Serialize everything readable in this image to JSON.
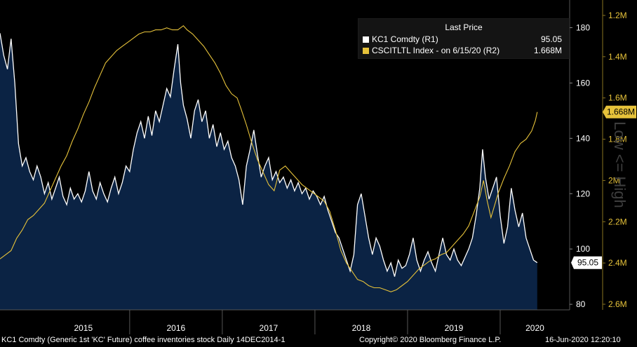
{
  "chart_data": {
    "type": "line",
    "legend": {
      "title": "Last Price",
      "placement": "top-right"
    },
    "x_ticks": [
      "2015",
      "2016",
      "2017",
      "2018",
      "2019",
      "2020"
    ],
    "y_left": {
      "ticks": [
        80,
        100,
        120,
        140,
        160,
        180
      ],
      "range": [
        78,
        190
      ]
    },
    "y_right": {
      "ticks": [
        "1.2M",
        "1.4M",
        "1.6M",
        "1.8M",
        "2M",
        "2.2M",
        "2.4M",
        "2.6M"
      ],
      "range_m": [
        2.65,
        1.15
      ],
      "inverted": true,
      "label": "Low <= High"
    },
    "series": [
      {
        "name": "KC1 Comdty  (R1)",
        "legend_value": "95.05",
        "last_label": "95.05",
        "color": "#ffffff",
        "fill": "#0b2344",
        "axis": "left",
        "points": [
          [
            2014.6,
            178
          ],
          [
            2014.64,
            170
          ],
          [
            2014.68,
            165
          ],
          [
            2014.72,
            176
          ],
          [
            2014.76,
            160
          ],
          [
            2014.8,
            138
          ],
          [
            2014.84,
            130
          ],
          [
            2014.88,
            133
          ],
          [
            2014.92,
            128
          ],
          [
            2014.96,
            125
          ],
          [
            2015.0,
            130
          ],
          [
            2015.04,
            126
          ],
          [
            2015.08,
            120
          ],
          [
            2015.12,
            124
          ],
          [
            2015.16,
            118
          ],
          [
            2015.2,
            122
          ],
          [
            2015.24,
            126
          ],
          [
            2015.28,
            119
          ],
          [
            2015.32,
            116
          ],
          [
            2015.36,
            122
          ],
          [
            2015.4,
            118
          ],
          [
            2015.44,
            120
          ],
          [
            2015.48,
            117
          ],
          [
            2015.52,
            121
          ],
          [
            2015.56,
            128
          ],
          [
            2015.6,
            121
          ],
          [
            2015.64,
            118
          ],
          [
            2015.68,
            124
          ],
          [
            2015.72,
            120
          ],
          [
            2015.76,
            117
          ],
          [
            2015.8,
            122
          ],
          [
            2015.84,
            126
          ],
          [
            2015.88,
            120
          ],
          [
            2015.92,
            124
          ],
          [
            2015.96,
            130
          ],
          [
            2016.0,
            128
          ],
          [
            2016.04,
            136
          ],
          [
            2016.08,
            142
          ],
          [
            2016.12,
            146
          ],
          [
            2016.16,
            140
          ],
          [
            2016.2,
            148
          ],
          [
            2016.24,
            141
          ],
          [
            2016.28,
            150
          ],
          [
            2016.32,
            146
          ],
          [
            2016.36,
            152
          ],
          [
            2016.4,
            158
          ],
          [
            2016.44,
            155
          ],
          [
            2016.48,
            165
          ],
          [
            2016.52,
            174
          ],
          [
            2016.55,
            160
          ],
          [
            2016.58,
            152
          ],
          [
            2016.62,
            147
          ],
          [
            2016.66,
            140
          ],
          [
            2016.7,
            150
          ],
          [
            2016.74,
            154
          ],
          [
            2016.78,
            146
          ],
          [
            2016.82,
            150
          ],
          [
            2016.86,
            140
          ],
          [
            2016.9,
            145
          ],
          [
            2016.94,
            137
          ],
          [
            2016.98,
            142
          ],
          [
            2017.02,
            136
          ],
          [
            2017.06,
            139
          ],
          [
            2017.1,
            133
          ],
          [
            2017.14,
            130
          ],
          [
            2017.18,
            125
          ],
          [
            2017.22,
            116
          ],
          [
            2017.26,
            130
          ],
          [
            2017.3,
            136
          ],
          [
            2017.34,
            143
          ],
          [
            2017.38,
            134
          ],
          [
            2017.42,
            126
          ],
          [
            2017.46,
            130
          ],
          [
            2017.5,
            133
          ],
          [
            2017.54,
            125
          ],
          [
            2017.58,
            128
          ],
          [
            2017.62,
            124
          ],
          [
            2017.66,
            126
          ],
          [
            2017.7,
            122
          ],
          [
            2017.74,
            125
          ],
          [
            2017.78,
            121
          ],
          [
            2017.82,
            124
          ],
          [
            2017.86,
            120
          ],
          [
            2017.9,
            122
          ],
          [
            2017.94,
            118
          ],
          [
            2017.98,
            121
          ],
          [
            2018.02,
            119
          ],
          [
            2018.06,
            116
          ],
          [
            2018.1,
            119
          ],
          [
            2018.14,
            114
          ],
          [
            2018.18,
            110
          ],
          [
            2018.22,
            106
          ],
          [
            2018.26,
            104
          ],
          [
            2018.3,
            100
          ],
          [
            2018.34,
            96
          ],
          [
            2018.38,
            92
          ],
          [
            2018.42,
            98
          ],
          [
            2018.46,
            116
          ],
          [
            2018.5,
            120
          ],
          [
            2018.54,
            112
          ],
          [
            2018.58,
            104
          ],
          [
            2018.62,
            98
          ],
          [
            2018.66,
            104
          ],
          [
            2018.7,
            101
          ],
          [
            2018.74,
            96
          ],
          [
            2018.78,
            92
          ],
          [
            2018.82,
            95
          ],
          [
            2018.86,
            90
          ],
          [
            2018.9,
            96
          ],
          [
            2018.94,
            93
          ],
          [
            2018.98,
            94
          ],
          [
            2019.02,
            98
          ],
          [
            2019.06,
            104
          ],
          [
            2019.1,
            96
          ],
          [
            2019.14,
            92
          ],
          [
            2019.18,
            96
          ],
          [
            2019.22,
            99
          ],
          [
            2019.26,
            95
          ],
          [
            2019.3,
            92
          ],
          [
            2019.34,
            98
          ],
          [
            2019.38,
            104
          ],
          [
            2019.42,
            98
          ],
          [
            2019.46,
            96
          ],
          [
            2019.5,
            100
          ],
          [
            2019.54,
            96
          ],
          [
            2019.58,
            94
          ],
          [
            2019.62,
            97
          ],
          [
            2019.66,
            100
          ],
          [
            2019.7,
            104
          ],
          [
            2019.74,
            112
          ],
          [
            2019.78,
            122
          ],
          [
            2019.81,
            136
          ],
          [
            2019.84,
            126
          ],
          [
            2019.88,
            118
          ],
          [
            2019.92,
            122
          ],
          [
            2019.96,
            126
          ],
          [
            2020.0,
            112
          ],
          [
            2020.04,
            102
          ],
          [
            2020.08,
            108
          ],
          [
            2020.12,
            122
          ],
          [
            2020.16,
            114
          ],
          [
            2020.2,
            108
          ],
          [
            2020.24,
            113
          ],
          [
            2020.28,
            104
          ],
          [
            2020.32,
            100
          ],
          [
            2020.36,
            96
          ],
          [
            2020.4,
            95.05
          ]
        ]
      },
      {
        "name": "CSCITLTL Index -  on 6/15/20  (R2)",
        "legend_value": "1.668M",
        "last_label": "1.668M",
        "color": "#e6c23a",
        "axis": "right",
        "points_m": [
          [
            2014.6,
            2.38
          ],
          [
            2014.66,
            2.36
          ],
          [
            2014.72,
            2.34
          ],
          [
            2014.78,
            2.28
          ],
          [
            2014.84,
            2.24
          ],
          [
            2014.9,
            2.19
          ],
          [
            2014.96,
            2.17
          ],
          [
            2015.02,
            2.14
          ],
          [
            2015.08,
            2.11
          ],
          [
            2015.14,
            2.05
          ],
          [
            2015.2,
            1.99
          ],
          [
            2015.26,
            1.93
          ],
          [
            2015.32,
            1.88
          ],
          [
            2015.38,
            1.81
          ],
          [
            2015.44,
            1.75
          ],
          [
            2015.5,
            1.68
          ],
          [
            2015.56,
            1.62
          ],
          [
            2015.62,
            1.55
          ],
          [
            2015.68,
            1.49
          ],
          [
            2015.74,
            1.43
          ],
          [
            2015.8,
            1.4
          ],
          [
            2015.86,
            1.37
          ],
          [
            2015.92,
            1.35
          ],
          [
            2015.98,
            1.33
          ],
          [
            2016.04,
            1.31
          ],
          [
            2016.1,
            1.29
          ],
          [
            2016.16,
            1.28
          ],
          [
            2016.22,
            1.28
          ],
          [
            2016.28,
            1.27
          ],
          [
            2016.34,
            1.27
          ],
          [
            2016.4,
            1.26
          ],
          [
            2016.46,
            1.27
          ],
          [
            2016.52,
            1.27
          ],
          [
            2016.58,
            1.25
          ],
          [
            2016.62,
            1.27
          ],
          [
            2016.68,
            1.29
          ],
          [
            2016.74,
            1.32
          ],
          [
            2016.8,
            1.35
          ],
          [
            2016.86,
            1.39
          ],
          [
            2016.92,
            1.43
          ],
          [
            2016.98,
            1.48
          ],
          [
            2017.04,
            1.54
          ],
          [
            2017.1,
            1.58
          ],
          [
            2017.16,
            1.6
          ],
          [
            2017.2,
            1.65
          ],
          [
            2017.26,
            1.73
          ],
          [
            2017.32,
            1.82
          ],
          [
            2017.38,
            1.9
          ],
          [
            2017.44,
            1.96
          ],
          [
            2017.5,
            2.02
          ],
          [
            2017.56,
            2.05
          ],
          [
            2017.62,
            1.95
          ],
          [
            2017.68,
            1.93
          ],
          [
            2017.74,
            1.96
          ],
          [
            2017.8,
            1.99
          ],
          [
            2017.86,
            2.02
          ],
          [
            2017.92,
            2.04
          ],
          [
            2017.98,
            2.06
          ],
          [
            2018.04,
            2.08
          ],
          [
            2018.1,
            2.1
          ],
          [
            2018.16,
            2.15
          ],
          [
            2018.22,
            2.24
          ],
          [
            2018.28,
            2.34
          ],
          [
            2018.34,
            2.4
          ],
          [
            2018.4,
            2.44
          ],
          [
            2018.46,
            2.48
          ],
          [
            2018.52,
            2.49
          ],
          [
            2018.58,
            2.51
          ],
          [
            2018.64,
            2.52
          ],
          [
            2018.7,
            2.52
          ],
          [
            2018.76,
            2.53
          ],
          [
            2018.82,
            2.54
          ],
          [
            2018.88,
            2.53
          ],
          [
            2018.94,
            2.51
          ],
          [
            2019.0,
            2.49
          ],
          [
            2019.06,
            2.46
          ],
          [
            2019.12,
            2.43
          ],
          [
            2019.18,
            2.41
          ],
          [
            2019.24,
            2.39
          ],
          [
            2019.3,
            2.38
          ],
          [
            2019.36,
            2.36
          ],
          [
            2019.42,
            2.35
          ],
          [
            2019.48,
            2.32
          ],
          [
            2019.54,
            2.29
          ],
          [
            2019.6,
            2.26
          ],
          [
            2019.66,
            2.22
          ],
          [
            2019.72,
            2.15
          ],
          [
            2019.78,
            2.08
          ],
          [
            2019.82,
            2.0
          ],
          [
            2019.86,
            2.1
          ],
          [
            2019.9,
            2.18
          ],
          [
            2019.94,
            2.12
          ],
          [
            2019.98,
            2.06
          ],
          [
            2020.04,
            1.99
          ],
          [
            2020.1,
            1.93
          ],
          [
            2020.16,
            1.86
          ],
          [
            2020.22,
            1.82
          ],
          [
            2020.28,
            1.8
          ],
          [
            2020.34,
            1.76
          ],
          [
            2020.38,
            1.71
          ],
          [
            2020.4,
            1.668
          ]
        ]
      }
    ]
  },
  "footer": {
    "description": "KC1 Comdty (Generic 1st 'KC' Future) coffee inventories stock  Daily 14DEC2014-1",
    "copyright": "Copyright© 2020 Bloomberg Finance L.P.",
    "timestamp": "16-Jun-2020 12:20:10"
  }
}
